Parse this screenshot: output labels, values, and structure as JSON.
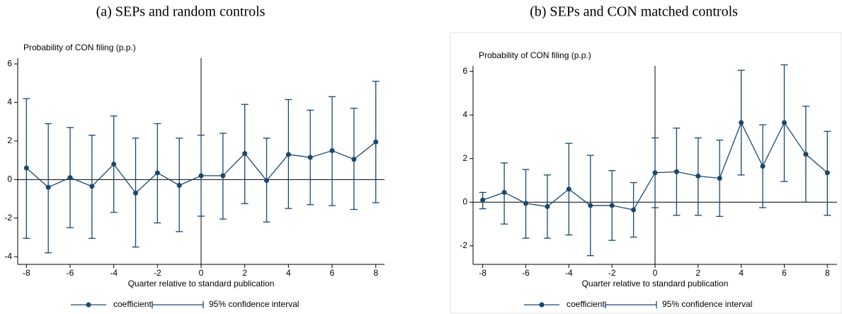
{
  "chart_data": [
    {
      "type": "errorbar-line",
      "title": "(a) SEPs and random controls",
      "ylabel": "Probability of CON filing (p.p.)",
      "xlabel": "Quarter relative to standard publication",
      "x": [
        -8,
        -7,
        -6,
        -5,
        -4,
        -3,
        -2,
        -1,
        0,
        1,
        2,
        3,
        4,
        5,
        6,
        7,
        8
      ],
      "series": [
        {
          "name": "coefficient",
          "color": "#1a476f",
          "values": [
            0.6,
            -0.4,
            0.1,
            -0.35,
            0.8,
            -0.7,
            0.35,
            -0.3,
            0.2,
            0.2,
            1.35,
            -0.05,
            1.3,
            1.15,
            1.5,
            1.05,
            1.95
          ]
        },
        {
          "name": "95% confidence interval",
          "color": "#1a476f",
          "lower": [
            -3.05,
            -3.8,
            -2.5,
            -3.05,
            -1.7,
            -3.5,
            -2.25,
            -2.7,
            -1.9,
            -2.05,
            -1.25,
            -2.2,
            -1.5,
            -1.3,
            -1.35,
            -1.55,
            -1.2
          ],
          "upper": [
            4.2,
            2.9,
            2.7,
            2.3,
            3.3,
            2.15,
            2.9,
            2.15,
            2.3,
            2.4,
            3.9,
            2.15,
            4.15,
            3.6,
            4.3,
            3.7,
            5.1
          ]
        }
      ],
      "xlim": [
        -8.4,
        8.4
      ],
      "ylim": [
        -4.4,
        6.3
      ],
      "xticks": [
        -8,
        -6,
        -4,
        -2,
        0,
        2,
        4,
        6,
        8
      ],
      "yticks": [
        -4,
        -2,
        0,
        2,
        4,
        6
      ],
      "xline": 0,
      "yline": 0
    },
    {
      "type": "errorbar-line",
      "title": "(b) SEPs and CON matched controls",
      "ylabel": "Probability of CON filing (p.p.)",
      "xlabel": "Quarter relative to standard publication",
      "x": [
        -8,
        -7,
        -6,
        -5,
        -4,
        -3,
        -2,
        -1,
        0,
        1,
        2,
        3,
        4,
        5,
        6,
        7,
        8
      ],
      "series": [
        {
          "name": "coefficient",
          "color": "#1a476f",
          "values": [
            0.1,
            0.45,
            -0.05,
            -0.2,
            0.6,
            -0.15,
            -0.15,
            -0.35,
            1.35,
            1.4,
            1.2,
            1.1,
            3.65,
            1.65,
            3.65,
            2.2,
            1.35
          ]
        },
        {
          "name": "95% confidence interval",
          "color": "#1a476f",
          "lower": [
            -0.3,
            -1.0,
            -1.65,
            -1.65,
            -1.5,
            -2.45,
            -1.75,
            -1.6,
            -0.25,
            -0.6,
            -0.6,
            -0.65,
            1.25,
            -0.25,
            0.95,
            0,
            -0.6
          ],
          "upper": [
            0.45,
            1.8,
            1.5,
            1.25,
            2.7,
            2.15,
            1.45,
            0.9,
            2.95,
            3.4,
            2.95,
            2.85,
            6.05,
            3.55,
            6.3,
            4.4,
            3.25
          ]
        }
      ],
      "xlim": [
        -8.45,
        8.45
      ],
      "ylim": [
        -2.85,
        6.25
      ],
      "xticks": [
        -8,
        -6,
        -4,
        -2,
        0,
        2,
        4,
        6,
        8
      ],
      "yticks": [
        -2,
        0,
        2,
        4,
        6
      ],
      "xline": 0,
      "yline": 0
    }
  ]
}
